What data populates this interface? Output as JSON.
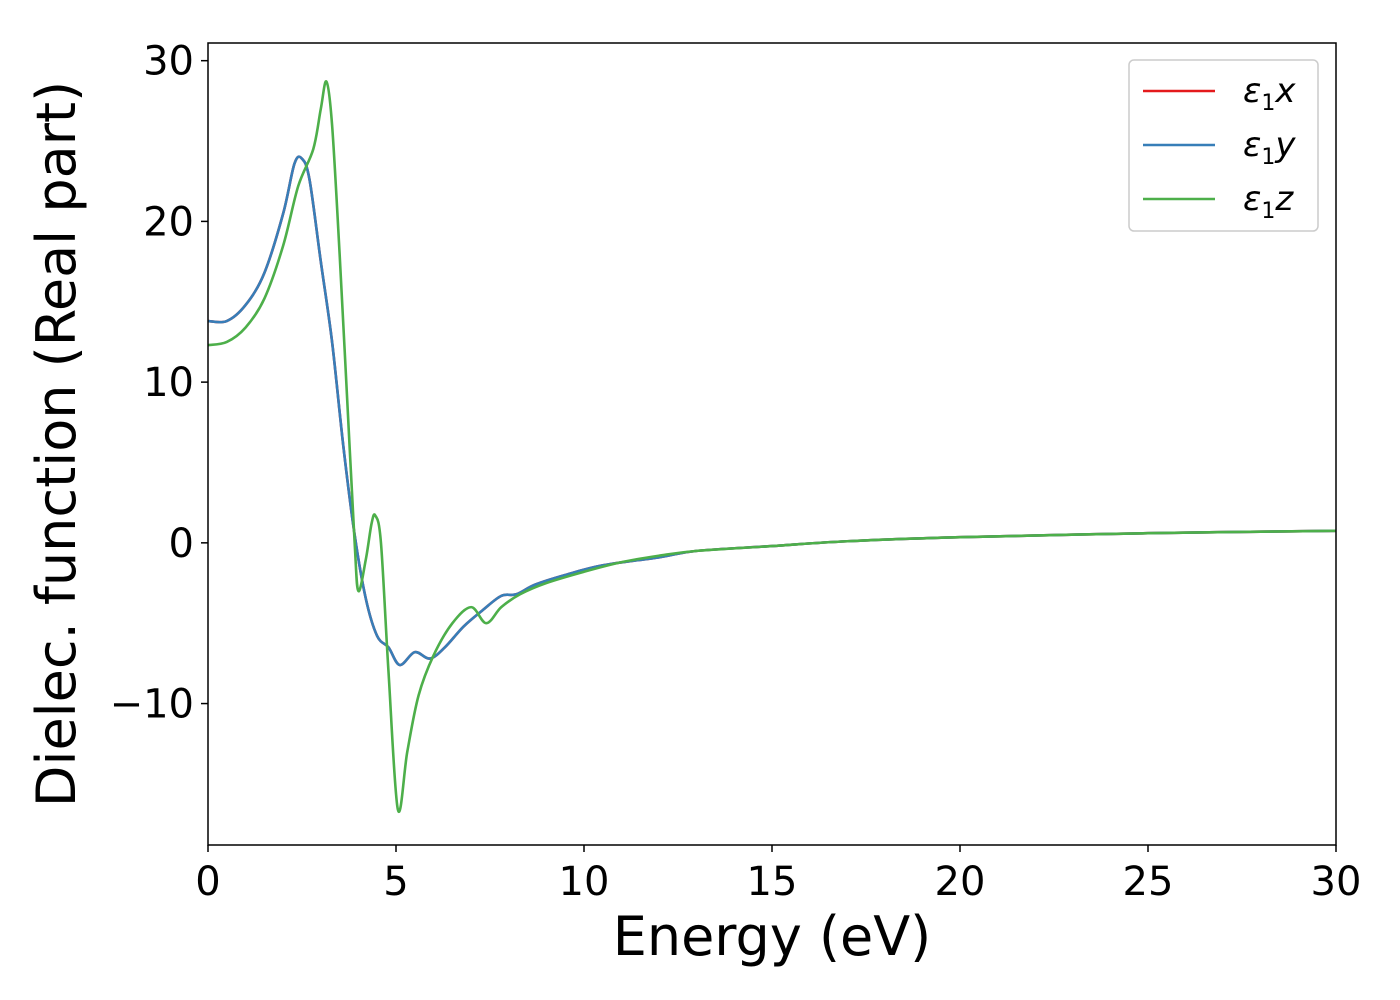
{
  "chart_data": {
    "type": "line",
    "xlabel": "Energy (eV)",
    "ylabel": "Dielec. function (Real part)",
    "xlim": [
      0,
      30
    ],
    "ylim": [
      -18.8,
      31.1
    ],
    "x_ticks": [
      0,
      5,
      10,
      15,
      20,
      25,
      30
    ],
    "x_tick_labels": [
      "0",
      "5",
      "10",
      "15",
      "20",
      "25",
      "30"
    ],
    "y_ticks": [
      -10,
      0,
      10,
      20,
      30
    ],
    "y_tick_labels": [
      "−10",
      "0",
      "10",
      "20",
      "30"
    ],
    "grid": false,
    "legend_position": "top-right",
    "series": [
      {
        "name": "ε1x",
        "legend_base": "ε",
        "legend_sub": "1",
        "legend_var": "x",
        "color": "#e41a1c",
        "points": [
          [
            0,
            13.8
          ],
          [
            0.5,
            13.8
          ],
          [
            1,
            14.8
          ],
          [
            1.5,
            16.8
          ],
          [
            2,
            20.5
          ],
          [
            2.3,
            23.6
          ],
          [
            2.5,
            23.9
          ],
          [
            2.7,
            22.6
          ],
          [
            3,
            17.5
          ],
          [
            3.3,
            12.5
          ],
          [
            3.6,
            6.0
          ],
          [
            3.9,
            0.5
          ],
          [
            4.2,
            -3.5
          ],
          [
            4.5,
            -5.8
          ],
          [
            4.8,
            -6.5
          ],
          [
            5.1,
            -7.6
          ],
          [
            5.5,
            -6.8
          ],
          [
            5.9,
            -7.2
          ],
          [
            6.3,
            -6.5
          ],
          [
            6.8,
            -5.2
          ],
          [
            7.3,
            -4.2
          ],
          [
            7.8,
            -3.3
          ],
          [
            8.2,
            -3.2
          ],
          [
            8.7,
            -2.6
          ],
          [
            9.5,
            -2.0
          ],
          [
            10.5,
            -1.4
          ],
          [
            12,
            -0.9
          ],
          [
            13,
            -0.5
          ],
          [
            15,
            -0.2
          ],
          [
            17,
            0.1
          ],
          [
            20,
            0.35
          ],
          [
            25,
            0.6
          ],
          [
            30,
            0.75
          ]
        ]
      },
      {
        "name": "ε1y",
        "legend_base": "ε",
        "legend_sub": "1",
        "legend_var": "y",
        "color": "#377eb8",
        "points": [
          [
            0,
            13.8
          ],
          [
            0.5,
            13.8
          ],
          [
            1,
            14.8
          ],
          [
            1.5,
            16.8
          ],
          [
            2,
            20.5
          ],
          [
            2.3,
            23.6
          ],
          [
            2.5,
            23.9
          ],
          [
            2.7,
            22.6
          ],
          [
            3,
            17.5
          ],
          [
            3.3,
            12.5
          ],
          [
            3.6,
            6.0
          ],
          [
            3.9,
            0.5
          ],
          [
            4.2,
            -3.5
          ],
          [
            4.5,
            -5.8
          ],
          [
            4.8,
            -6.5
          ],
          [
            5.1,
            -7.6
          ],
          [
            5.5,
            -6.8
          ],
          [
            5.9,
            -7.2
          ],
          [
            6.3,
            -6.5
          ],
          [
            6.8,
            -5.2
          ],
          [
            7.3,
            -4.2
          ],
          [
            7.8,
            -3.3
          ],
          [
            8.2,
            -3.2
          ],
          [
            8.7,
            -2.6
          ],
          [
            9.5,
            -2.0
          ],
          [
            10.5,
            -1.4
          ],
          [
            12,
            -0.9
          ],
          [
            13,
            -0.5
          ],
          [
            15,
            -0.2
          ],
          [
            17,
            0.1
          ],
          [
            20,
            0.35
          ],
          [
            25,
            0.6
          ],
          [
            30,
            0.75
          ]
        ]
      },
      {
        "name": "ε1z",
        "legend_base": "ε",
        "legend_sub": "1",
        "legend_var": "z",
        "color": "#4daf4a",
        "points": [
          [
            0,
            12.3
          ],
          [
            0.5,
            12.5
          ],
          [
            1,
            13.4
          ],
          [
            1.5,
            15.2
          ],
          [
            2,
            18.5
          ],
          [
            2.4,
            22.2
          ],
          [
            2.8,
            24.5
          ],
          [
            3.0,
            27.0
          ],
          [
            3.15,
            28.7
          ],
          [
            3.3,
            26.0
          ],
          [
            3.5,
            18.0
          ],
          [
            3.7,
            9.0
          ],
          [
            3.9,
            0.0
          ],
          [
            4.0,
            -3.0
          ],
          [
            4.2,
            -1.0
          ],
          [
            4.35,
            1.2
          ],
          [
            4.45,
            1.7
          ],
          [
            4.6,
            0.0
          ],
          [
            4.8,
            -8.0
          ],
          [
            5.05,
            -16.6
          ],
          [
            5.3,
            -13.0
          ],
          [
            5.6,
            -9.5
          ],
          [
            6.0,
            -7.0
          ],
          [
            6.5,
            -5.0
          ],
          [
            7.0,
            -4.0
          ],
          [
            7.4,
            -5.0
          ],
          [
            7.8,
            -4.0
          ],
          [
            8.3,
            -3.2
          ],
          [
            9,
            -2.5
          ],
          [
            10,
            -1.8
          ],
          [
            11,
            -1.2
          ],
          [
            12,
            -0.8
          ],
          [
            13,
            -0.5
          ],
          [
            15,
            -0.2
          ],
          [
            17,
            0.1
          ],
          [
            20,
            0.35
          ],
          [
            25,
            0.6
          ],
          [
            30,
            0.75
          ]
        ]
      }
    ]
  }
}
